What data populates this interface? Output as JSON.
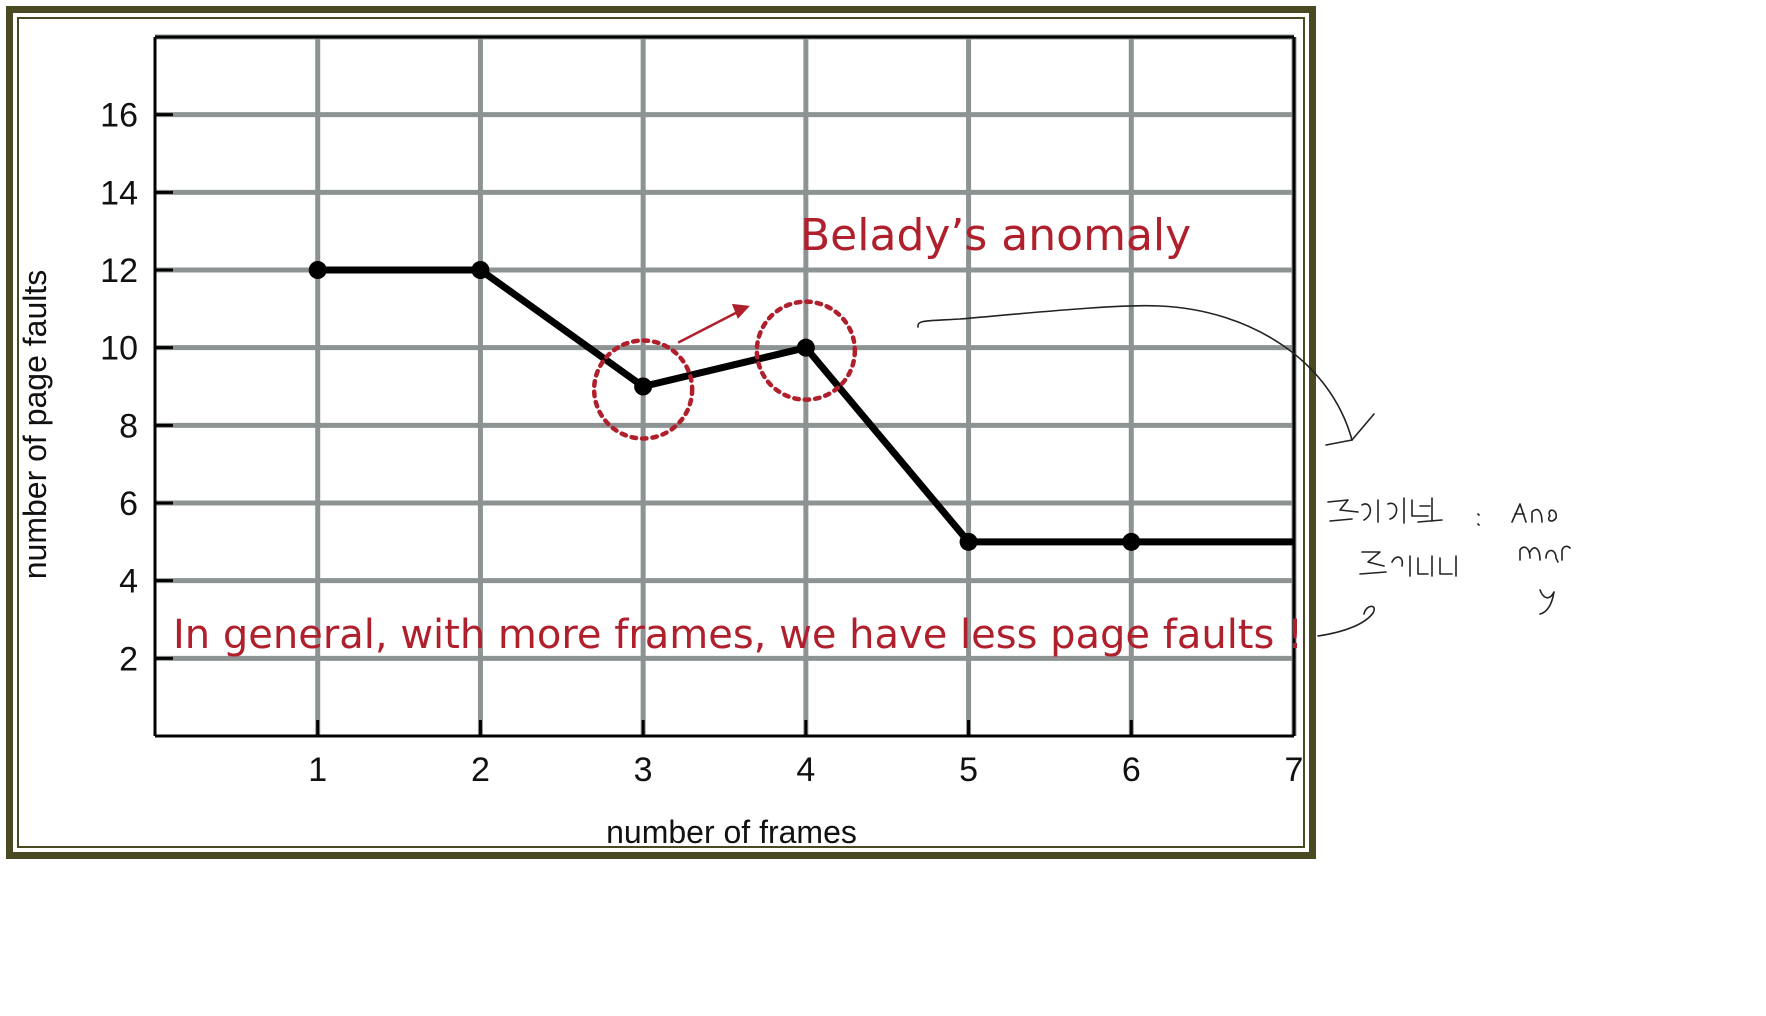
{
  "chart_data": {
    "type": "line",
    "title": "",
    "xlabel": "number of frames",
    "ylabel": "number of page faults",
    "x_ticks": [
      "1",
      "2",
      "3",
      "4",
      "5",
      "6",
      "7"
    ],
    "y_ticks": [
      "2",
      "4",
      "6",
      "8",
      "10",
      "12",
      "14",
      "16"
    ],
    "xlim": [
      0,
      7
    ],
    "ylim": [
      0,
      18
    ],
    "grid": true,
    "series": [
      {
        "x": [
          1,
          2,
          3,
          4,
          5,
          6,
          7
        ],
        "y": [
          12,
          12,
          9,
          10,
          5,
          5,
          5
        ],
        "markers": [
          true,
          true,
          true,
          true,
          true,
          true,
          false
        ]
      }
    ],
    "annotations": {
      "anomaly_label": "Belady’s anomaly",
      "general_note": "In general, with more frames, we have less page faults !",
      "highlighted_points": [
        3,
        4
      ]
    }
  },
  "colors": {
    "grid": "#8d9293",
    "line": "#000000",
    "annotation": "#b0202c",
    "frame": "#4a4a22"
  }
}
